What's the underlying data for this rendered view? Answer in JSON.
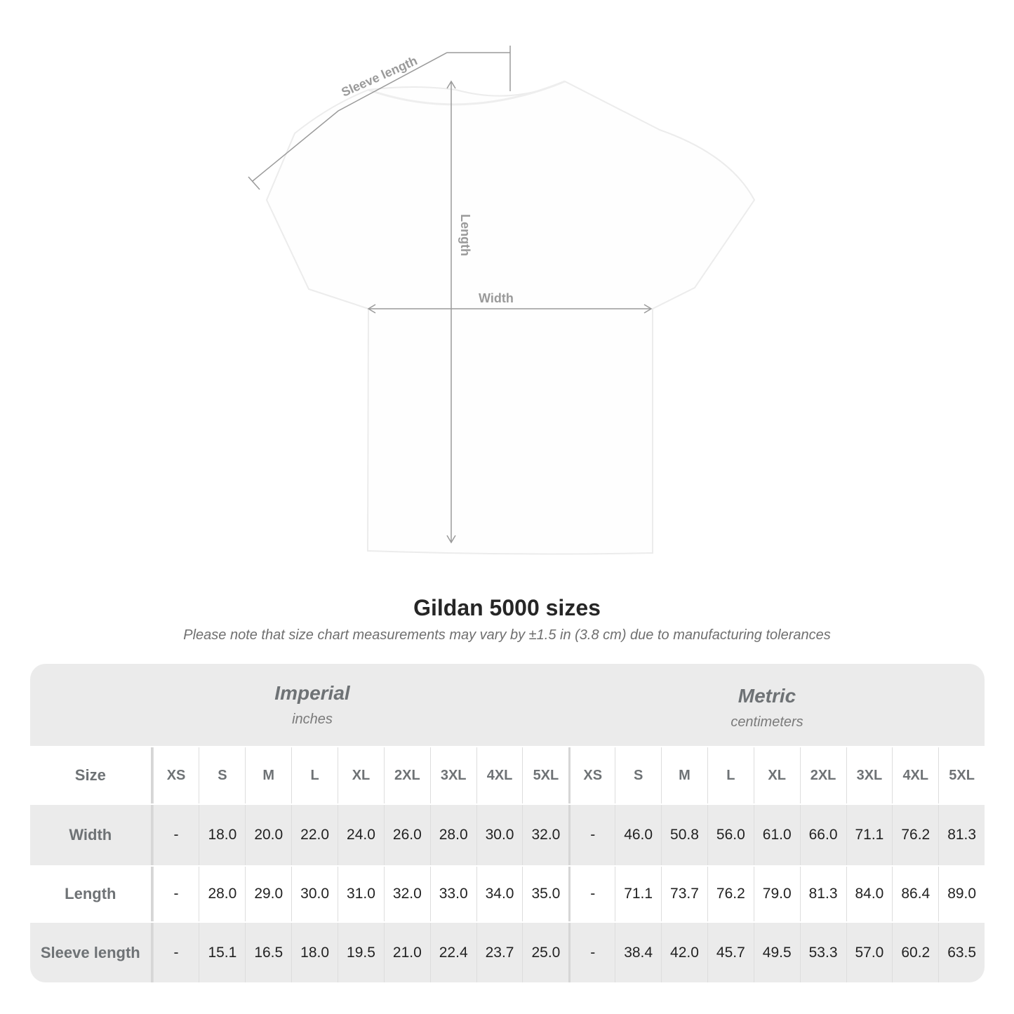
{
  "diagram": {
    "labels": {
      "sleeve": "Sleeve length",
      "length": "Length",
      "width": "Width"
    },
    "line_color": "#9a9a9a"
  },
  "title": "Gildan 5000 sizes",
  "note": "Please note that size chart measurements may vary by ±1.5 in (3.8 cm) due to manufacturing tolerances",
  "table": {
    "imperial": {
      "name": "Imperial",
      "unit": "inches"
    },
    "metric": {
      "name": "Metric",
      "unit": "centimeters"
    },
    "size_label": "Size",
    "sizes": [
      "XS",
      "S",
      "M",
      "L",
      "XL",
      "2XL",
      "3XL",
      "4XL",
      "5XL"
    ],
    "rows": [
      {
        "label": "Width",
        "imperial": [
          "-",
          "18.0",
          "20.0",
          "22.0",
          "24.0",
          "26.0",
          "28.0",
          "30.0",
          "32.0"
        ],
        "metric": [
          "-",
          "46.0",
          "50.8",
          "56.0",
          "61.0",
          "66.0",
          "71.1",
          "76.2",
          "81.3"
        ]
      },
      {
        "label": "Length",
        "imperial": [
          "-",
          "28.0",
          "29.0",
          "30.0",
          "31.0",
          "32.0",
          "33.0",
          "34.0",
          "35.0"
        ],
        "metric": [
          "-",
          "71.1",
          "73.7",
          "76.2",
          "79.0",
          "81.3",
          "84.0",
          "86.4",
          "89.0"
        ]
      },
      {
        "label": "Sleeve length",
        "imperial": [
          "-",
          "15.1",
          "16.5",
          "18.0",
          "19.5",
          "21.0",
          "22.4",
          "23.7",
          "25.0"
        ],
        "metric": [
          "-",
          "38.4",
          "42.0",
          "45.7",
          "49.5",
          "53.3",
          "57.0",
          "60.2",
          "63.5"
        ]
      }
    ],
    "colors": {
      "band": "#ebebeb",
      "header_text": "#6e7275"
    }
  }
}
